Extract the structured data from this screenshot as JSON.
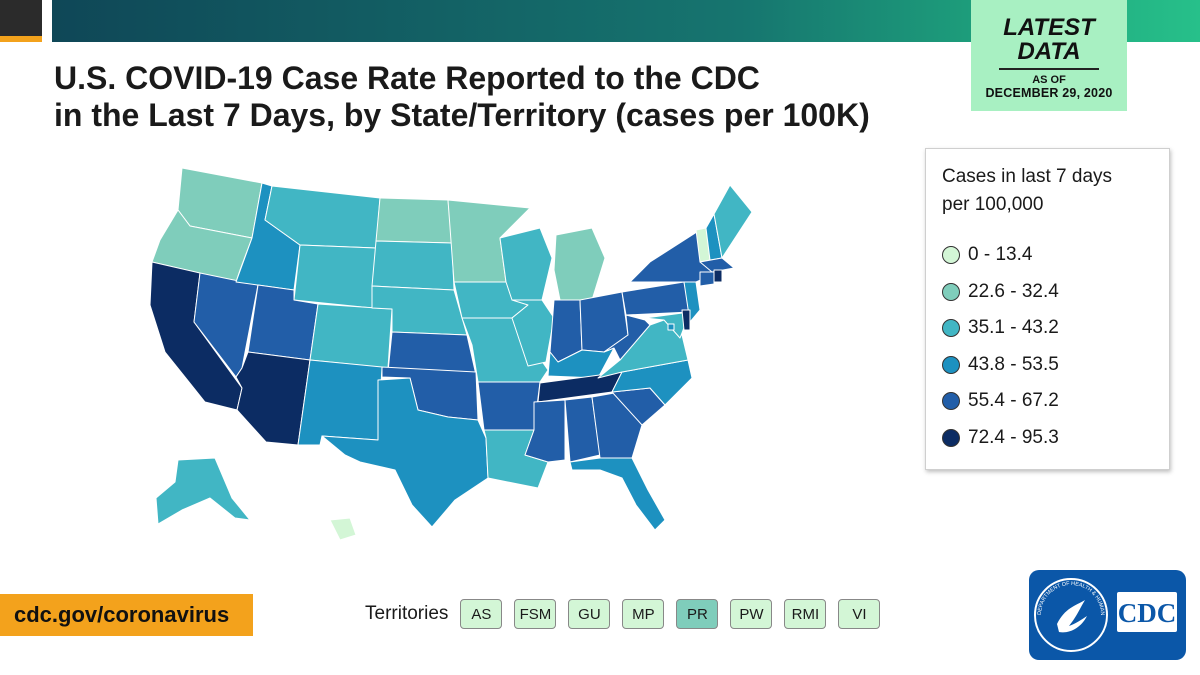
{
  "title": {
    "line1": "U.S. COVID-19 Case Rate Reported to the CDC",
    "line2": "in the Last 7 Days, by State/Territory (cases per 100K)"
  },
  "badge": {
    "line1": "LATEST",
    "line2": "DATA",
    "as_of": "AS OF",
    "date": "DECEMBER 29, 2020"
  },
  "legend": {
    "title_line1": "Cases in last 7 days",
    "title_line2": "per 100,000",
    "items": [
      {
        "label": "0 - 13.4",
        "color": "#d3f6d6"
      },
      {
        "label": "22.6 - 32.4",
        "color": "#7fcdbb"
      },
      {
        "label": "35.1 - 43.2",
        "color": "#41b6c4"
      },
      {
        "label": "43.8 - 53.5",
        "color": "#1d91c0"
      },
      {
        "label": "55.4 - 67.2",
        "color": "#225ea8"
      },
      {
        "label": "72.4 - 95.3",
        "color": "#0c2c63"
      }
    ]
  },
  "territories": {
    "label": "Territories",
    "items": [
      {
        "code": "AS",
        "color": "#d3f6d6"
      },
      {
        "code": "FSM",
        "color": "#d3f6d6"
      },
      {
        "code": "GU",
        "color": "#d3f6d6"
      },
      {
        "code": "MP",
        "color": "#d3f6d6"
      },
      {
        "code": "PR",
        "color": "#7fcdbb"
      },
      {
        "code": "PW",
        "color": "#d3f6d6"
      },
      {
        "code": "RMI",
        "color": "#d3f6d6"
      },
      {
        "code": "VI",
        "color": "#d3f6d6"
      }
    ]
  },
  "url": "cdc.gov/coronavirus",
  "logo_text": "CDC",
  "logo_ring_text": "DEPARTMENT OF HEALTH & HUMAN SERVICES USA",
  "colors": {
    "c0": "#d3f6d6",
    "c1": "#7fcdbb",
    "c2": "#41b6c4",
    "c3": "#1d91c0",
    "c4": "#225ea8",
    "c5": "#0c2c63",
    "accent_orange": "#f3a21c",
    "badge_green": "#a8f0c2",
    "cdc_blue": "#0b57a8"
  },
  "chart_data": {
    "type": "choropleth",
    "title": "U.S. COVID-19 Case Rate Reported to the CDC in the Last 7 Days, by State/Territory (cases per 100K)",
    "legend_title": "Cases in last 7 days per 100,000",
    "bins": [
      "0 - 13.4",
      "22.6 - 32.4",
      "35.1 - 43.2",
      "43.8 - 53.5",
      "55.4 - 67.2",
      "72.4 - 95.3"
    ],
    "states": {
      "WA": 1,
      "OR": 1,
      "CA": 5,
      "NV": 4,
      "ID": 3,
      "MT": 2,
      "WY": 2,
      "UT": 4,
      "AZ": 5,
      "CO": 2,
      "NM": 3,
      "ND": 1,
      "SD": 2,
      "NE": 2,
      "KS": 4,
      "OK": 4,
      "TX": 3,
      "MN": 1,
      "IA": 2,
      "MO": 2,
      "AR": 4,
      "LA": 2,
      "WI": 2,
      "IL": 2,
      "MI": 1,
      "IN": 4,
      "OH": 4,
      "KY": 3,
      "TN": 5,
      "MS": 4,
      "AL": 4,
      "GA": 4,
      "FL": 3,
      "SC": 4,
      "NC": 3,
      "VA": 2,
      "WV": 4,
      "PA": 4,
      "NY": 4,
      "NJ": 3,
      "DE": 5,
      "MD": 2,
      "DC": 3,
      "CT": 4,
      "RI": 5,
      "MA": 4,
      "VT": 0,
      "NH": 3,
      "ME": 2,
      "AK": 2,
      "HI": 0
    },
    "territories": {
      "AS": 0,
      "FSM": 0,
      "GU": 0,
      "MP": 0,
      "PR": 1,
      "PW": 0,
      "RMI": 0,
      "VI": 0
    }
  }
}
